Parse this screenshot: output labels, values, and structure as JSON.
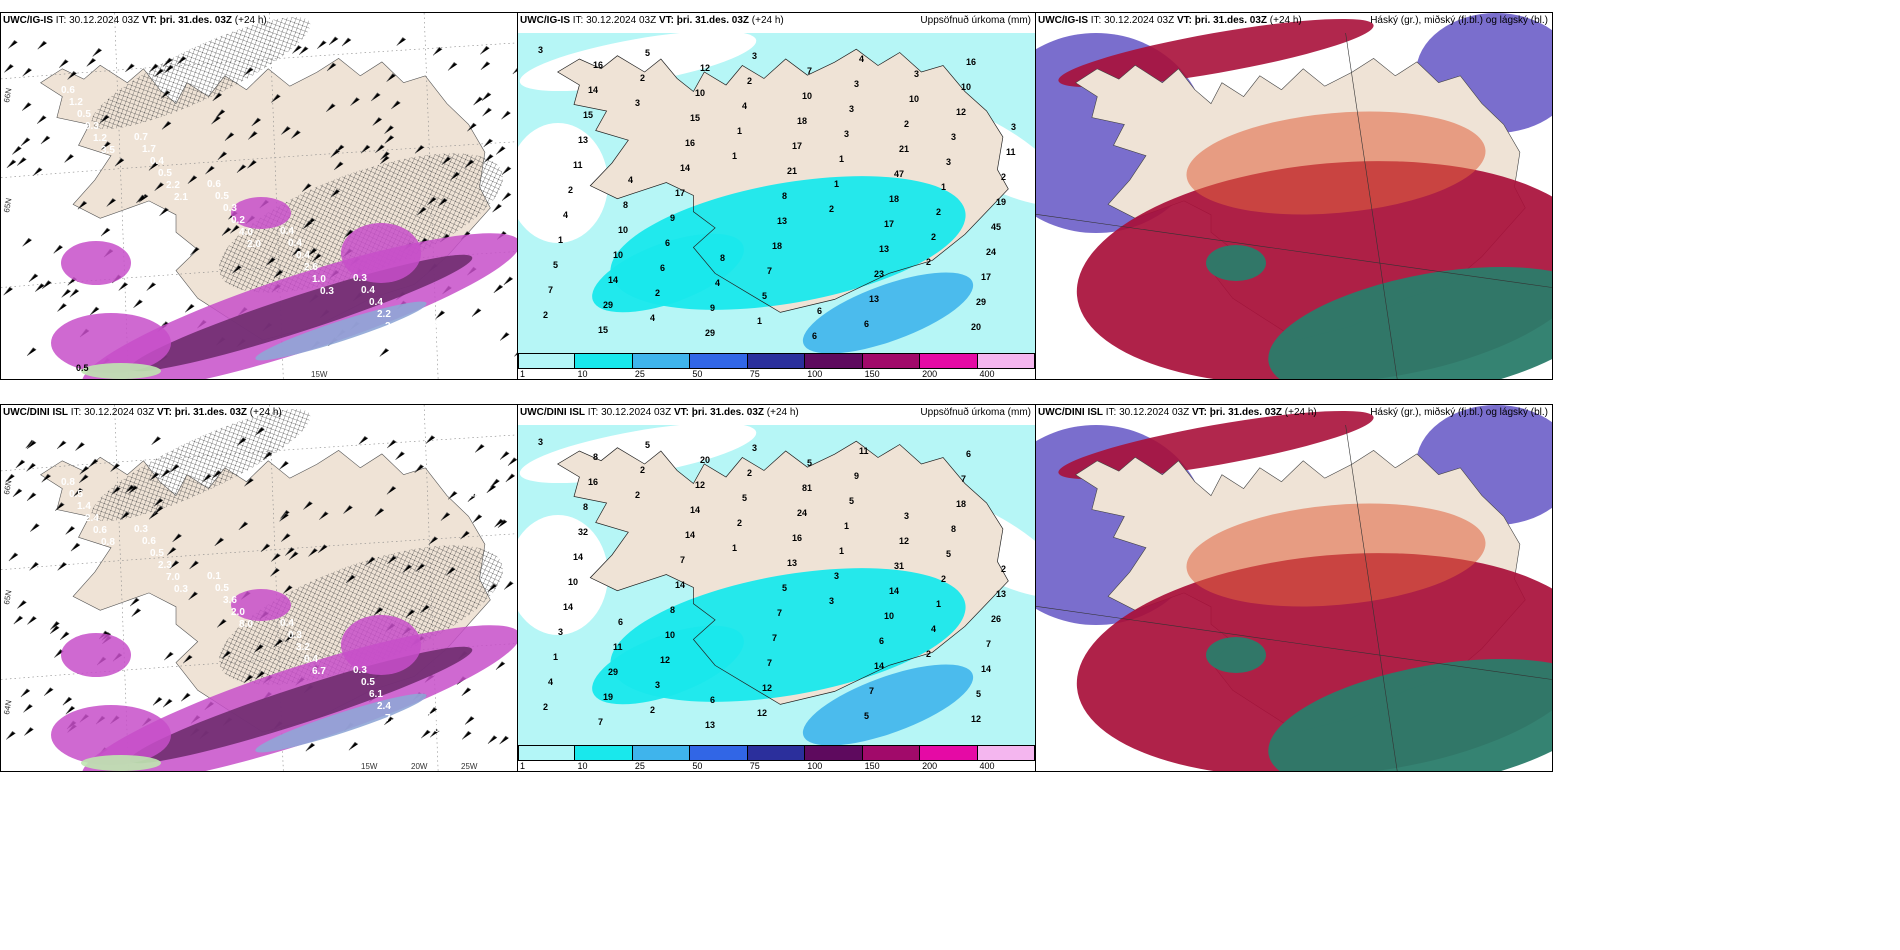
{
  "rows": [
    {
      "model": "UWC/IG-IS",
      "panels": [
        {
          "type": "precip-type",
          "title": {
            "model": "UWC/IG-IS",
            "it_label": "IT:",
            "it": "30.12.2024 03Z",
            "vt_label": "VT:",
            "vt": "þri. 31.des. 03Z",
            "lead": "(+24 h)"
          },
          "right": "",
          "precip_labels": [
            "0.6",
            "0.7",
            "0.6",
            "0.4",
            "0.3",
            "0.4",
            "1.2",
            "1.7",
            "0.5",
            "0.4",
            "0.4",
            "0.5",
            "0.5",
            "0.4",
            "0.3",
            "0.4",
            "0.4",
            "0.9",
            "0.3",
            "0.5",
            "0.2",
            "2.6",
            "2.2",
            "2.8",
            "1.2",
            "2.2",
            "4.0",
            "1.0",
            "2.2",
            "7.6",
            "3.5",
            "2.1",
            "2.0",
            "0.3"
          ],
          "white_labels": [
            "0.5"
          ],
          "grid_labels": [
            "66N",
            "65N",
            "15W"
          ]
        },
        {
          "type": "accum",
          "title": {
            "model": "UWC/IG-IS",
            "it_label": "IT:",
            "it": "30.12.2024 03Z",
            "vt_label": "VT:",
            "vt": "þri. 31.des. 03Z",
            "lead": "(+24 h)"
          },
          "right": "Uppsöfnuð úrkoma (mm)",
          "labels": [
            "3",
            "3",
            "1",
            "2",
            "2",
            "2",
            "2",
            "1",
            "1",
            "2",
            "7",
            "5",
            "4",
            "1",
            "2",
            "5",
            "4",
            "2",
            "3",
            "1",
            "1",
            "2",
            "3",
            "3",
            "3",
            "4",
            "6",
            "1",
            "3",
            "3",
            "2",
            "6",
            "5",
            "4",
            "12",
            "11",
            "9",
            "7",
            "6",
            "10",
            "13",
            "17",
            "18",
            "13",
            "16",
            "15",
            "14",
            "13",
            "23",
            "20",
            "14",
            "16",
            "8",
            "13",
            "29",
            "16",
            "15",
            "21",
            "17",
            "17",
            "15",
            "10",
            "17",
            "18",
            "24",
            "29",
            "12",
            "18",
            "47",
            "45",
            "14",
            "29",
            "10",
            "21",
            "19",
            "10",
            "9",
            "7",
            "2",
            "2",
            "10",
            "4",
            "6",
            "10",
            "11",
            "8",
            "8",
            "6",
            "3",
            "3",
            "4"
          ],
          "colorbar": [
            "1",
            "10",
            "25",
            "50",
            "75",
            "100",
            "150",
            "200",
            "400"
          ]
        },
        {
          "type": "cloud",
          "title": {
            "model": "UWC/IG-IS",
            "it_label": "IT:",
            "it": "30.12.2024 03Z",
            "vt_label": "VT:",
            "vt": "þri. 31.des. 03Z",
            "lead": "(+24 h)"
          },
          "right": "Háský (gr.), miðský (fj.bl.) og lágský (bl.)"
        }
      ]
    },
    {
      "model": "UWC/DINI ISL",
      "panels": [
        {
          "type": "precip-type",
          "title": {
            "model": "UWC/DINI ISL",
            "it_label": "IT:",
            "it": "30.12.2024 03Z",
            "vt_label": "VT:",
            "vt": "þri. 31.des. 03Z",
            "lead": "(+24 h)"
          },
          "right": "",
          "precip_labels": [
            "0.8",
            "0.3",
            "0.1",
            "0.4",
            "0.3",
            "0.5",
            "0.5",
            "0.6",
            "0.5",
            "0.3",
            "0.5",
            "0.3",
            "1.4",
            "0.5",
            "3.6",
            "3.2",
            "6.1",
            "0.5",
            "2.4",
            "2.3",
            "2.0",
            "0.4",
            "2.4",
            "0.8",
            "0.6",
            "7.0",
            "8.0",
            "6.7",
            "7.6",
            "13.4",
            "0.8",
            "0.3"
          ],
          "white_labels": [],
          "grid_labels": [
            "66N",
            "65N",
            "64N",
            "15W",
            "20W",
            "25W"
          ]
        },
        {
          "type": "accum",
          "title": {
            "model": "UWC/DINI ISL",
            "it_label": "IT:",
            "it": "30.12.2024 03Z",
            "vt_label": "VT:",
            "vt": "þri. 31.des. 03Z",
            "lead": "(+24 h)"
          },
          "right": "Uppsöfnuð úrkoma (mm)",
          "labels": [
            "3",
            "2",
            "1",
            "3",
            "2",
            "2",
            "2",
            "2",
            "3",
            "4",
            "4",
            "5",
            "5",
            "1",
            "1",
            "1",
            "2",
            "2",
            "1",
            "2",
            "3",
            "3",
            "3",
            "5",
            "5",
            "14",
            "12",
            "12",
            "9",
            "8",
            "10",
            "10",
            "12",
            "11",
            "18",
            "14",
            "8",
            "7",
            "5",
            "7",
            "32",
            "14",
            "7",
            "7",
            "6",
            "8",
            "7",
            "7",
            "14",
            "12",
            "16",
            "14",
            "5",
            "6",
            "5",
            "8",
            "14",
            "13",
            "10",
            "14",
            "7",
            "12",
            "16",
            "14",
            "7",
            "19",
            "20",
            "24",
            "31",
            "26",
            "29",
            "13",
            "81",
            "12",
            "13",
            "11",
            "6",
            "5",
            "3",
            "2",
            "6"
          ],
          "colorbar": [
            "1",
            "10",
            "25",
            "50",
            "75",
            "100",
            "150",
            "200",
            "400"
          ]
        },
        {
          "type": "cloud",
          "title": {
            "model": "UWC/DINI ISL",
            "it_label": "IT:",
            "it": "30.12.2024 03Z",
            "vt_label": "VT:",
            "vt": "þri. 31.des. 03Z",
            "lead": "(+24 h)"
          },
          "right": "Háský (gr.), miðský (fj.bl.) og lágský (bl.)"
        }
      ]
    }
  ],
  "colors": {
    "land": "#efe3d6",
    "precip_light": "#e8a6ec",
    "precip_mid": "#c74fc9",
    "precip_dark": "#6a2a6a",
    "precip_blue": "#8fa6d6",
    "snow_green": "#bfe6b0",
    "accum_light": "#b6f6f6",
    "accum_mid": "#19e8ec",
    "accum_blue": "#3fb5ec",
    "cloud_high": "#a80f3a",
    "cloud_mid": "#6c5ec8",
    "cloud_low": "#2a7c6a",
    "colorbar": [
      "#b3f6f7",
      "#19e8ec",
      "#3fb4ec",
      "#3166e6",
      "#2b2f9c",
      "#5e0a5e",
      "#a10a6a",
      "#e50aa5",
      "#f4b6ef"
    ]
  }
}
